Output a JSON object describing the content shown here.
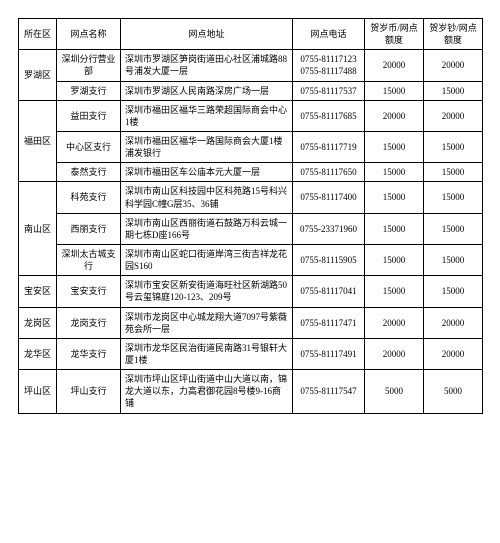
{
  "table": {
    "headers": {
      "region": "所在区",
      "name": "网点名称",
      "address": "网点地址",
      "phone": "网点电话",
      "coin": "贺岁币/网点额度",
      "note": "贺岁钞/网点额度"
    },
    "regions": [
      {
        "label": "罗湖区",
        "branches": [
          {
            "name": "深圳分行营业部",
            "address": "深圳市罗湖区笋岗街道田心社区浦城路88号浦发大厦一层",
            "phone": "0755-81117123\n0755-81117488",
            "coin": "20000",
            "note": "20000"
          },
          {
            "name": "罗湖支行",
            "address": "深圳市罗湖区人民南路深房广场一层",
            "phone": "0755-81117537",
            "coin": "15000",
            "note": "15000"
          }
        ]
      },
      {
        "label": "福田区",
        "branches": [
          {
            "name": "益田支行",
            "address": "深圳市福田区福华三路荣超国际商会中心1楼",
            "phone": "0755-81117685",
            "coin": "20000",
            "note": "20000"
          },
          {
            "name": "中心区支行",
            "address": "深圳市福田区福华一路国际商会大厦1楼浦发银行",
            "phone": "0755-81117719",
            "coin": "15000",
            "note": "15000"
          },
          {
            "name": "泰然支行",
            "address": "深圳市福田区车公庙本元大厦一层",
            "phone": "0755-81117650",
            "coin": "15000",
            "note": "15000"
          }
        ]
      },
      {
        "label": "南山区",
        "branches": [
          {
            "name": "科苑支行",
            "address": "深圳市南山区科技园中区科苑路15号科兴科学园C幢G层35、36铺",
            "phone": "0755-81117400",
            "coin": "15000",
            "note": "15000"
          },
          {
            "name": "西丽支行",
            "address": "深圳市南山区西丽街道石鼓路万科云城一期七栋D座166号",
            "phone": "0755-23371960",
            "coin": "15000",
            "note": "15000"
          },
          {
            "name": "深圳太古城支行",
            "address": "深圳市南山区蛇口街道岸湾三街吉祥龙花园S160",
            "phone": "0755-81115905",
            "coin": "15000",
            "note": "15000"
          }
        ]
      },
      {
        "label": "宝安区",
        "branches": [
          {
            "name": "宝安支行",
            "address": "深圳市宝安区新安街道海旺社区新湖路50号云玺锦庭120-123、209号",
            "phone": "0755-81117041",
            "coin": "15000",
            "note": "15000"
          }
        ]
      },
      {
        "label": "龙岗区",
        "branches": [
          {
            "name": "龙岗支行",
            "address": "深圳市龙岗区中心城龙翔大道7097号紫薇苑会所一层",
            "phone": "0755-81117471",
            "coin": "20000",
            "note": "20000"
          }
        ]
      },
      {
        "label": "龙华区",
        "branches": [
          {
            "name": "龙华支行",
            "address": "深圳市龙华区民治街道民南路31号银轩大厦1楼",
            "phone": "0755-81117491",
            "coin": "20000",
            "note": "20000"
          }
        ]
      },
      {
        "label": "坪山区",
        "branches": [
          {
            "name": "坪山支行",
            "address": "深圳市坪山区坪山街道中山大道以南，锦龙大道以东，力高君御花园8号楼9-16商铺",
            "phone": "0755-81117547",
            "coin": "5000",
            "note": "5000"
          }
        ]
      }
    ]
  }
}
